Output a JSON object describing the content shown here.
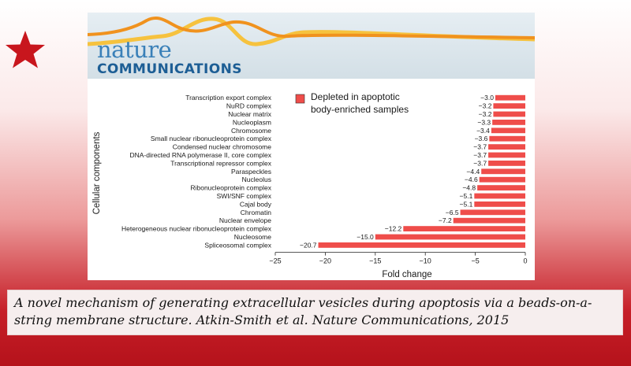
{
  "journal": {
    "name": "nature",
    "subtitle": "COMMUNICATIONS"
  },
  "caption": "A novel mechanism of generating extracellular vesicles during apoptosis via a beads-on-a-string membrane structure. Atkin-Smith et al. Nature Communications, 2015",
  "colors": {
    "bar": "#ef4d4a",
    "star": "#c8161d",
    "wave_orange": "#f0921e",
    "wave_yellow": "#f6c23e"
  },
  "chart_data": {
    "type": "bar",
    "orientation": "horizontal",
    "categories": [
      "Transcription export complex",
      "NuRD complex",
      "Nuclear matrix",
      "Nucleoplasm",
      "Chromosome",
      "Small nuclear ribonucleoprotein complex",
      "Condensed nuclear chromosome",
      "DNA-directed RNA polymerase II, core complex",
      "Transcriptional repressor complex",
      "Paraspeckles",
      "Nucleolus",
      "Ribonucleoprotein complex",
      "SWI/SNF complex",
      "Cajal body",
      "Chromatin",
      "Nuclear envelope",
      "Heterogeneous nuclear ribonucleoprotein complex",
      "Nucleosome",
      "Spliceosomal complex"
    ],
    "values": [
      -3.0,
      -3.2,
      -3.2,
      -3.3,
      -3.4,
      -3.6,
      -3.7,
      -3.7,
      -3.7,
      -4.4,
      -4.6,
      -4.8,
      -5.1,
      -5.1,
      -6.5,
      -7.2,
      -12.2,
      -15.0,
      -20.7
    ],
    "value_labels": [
      "−3.0",
      "−3.2",
      "−3.2",
      "−3.3",
      "−3.4",
      "−3.6",
      "−3.7",
      "−3.7",
      "−3.7",
      "−4.4",
      "−4.6",
      "−4.8",
      "−5.1",
      "−5.1",
      "−6.5",
      "−7.2",
      "−12.2",
      "−15.0",
      "−20.7"
    ],
    "xlabel": "Fold change",
    "ylabel": "Cellular components",
    "xlim": [
      -25,
      0
    ],
    "xticks": [
      -25,
      -20,
      -15,
      -10,
      -5,
      0
    ],
    "xtick_labels": [
      "−25",
      "−20",
      "−15",
      "−10",
      "−5",
      "0"
    ],
    "legend": {
      "entries": [
        "Depleted in apoptotic body-enriched samples"
      ],
      "lines": [
        "Depleted in apoptotic",
        "body-enriched samples"
      ],
      "placement": "top-left"
    },
    "grid": false
  }
}
